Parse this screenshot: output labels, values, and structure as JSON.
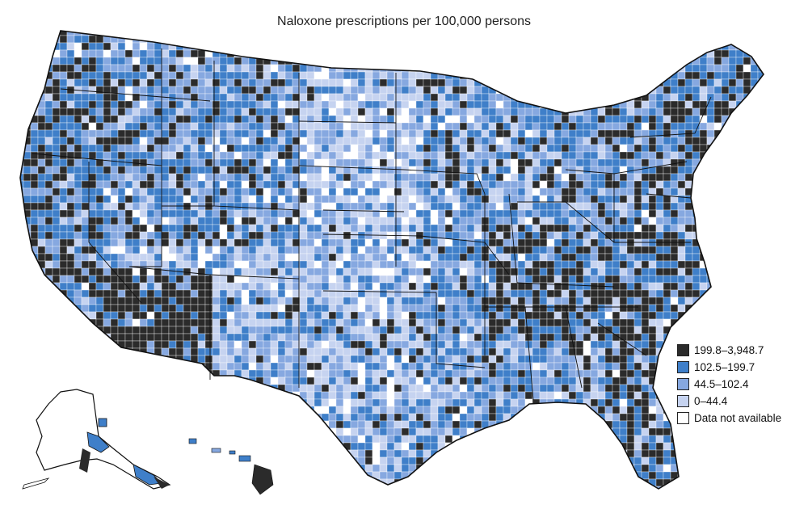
{
  "title": "Naloxone prescriptions per 100,000 persons",
  "legend": [
    {
      "label": "199.8–3,948.7",
      "color": "#2b2b2b"
    },
    {
      "label": "102.5–199.7",
      "color": "#3f7fc9"
    },
    {
      "label": "44.5–102.4",
      "color": "#86a8e0"
    },
    {
      "label": "0–44.4",
      "color": "#c6d3f0"
    },
    {
      "label": "Data not available",
      "color": "#ffffff"
    }
  ]
}
